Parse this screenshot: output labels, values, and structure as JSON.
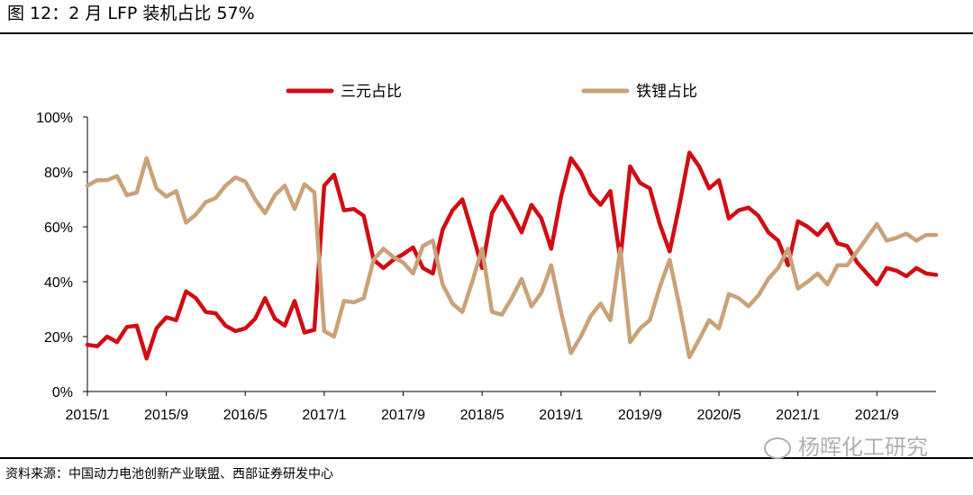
{
  "title": "图 12：2 月 LFP 装机占比 57%",
  "source": "资料来源：中国动力电池创新产业联盟、西部证券研发中心",
  "watermark": "杨晖化工研究",
  "colors": {
    "ncm": "#d00d14",
    "lfp": "#c9a27a",
    "axis": "#000000"
  },
  "chart_data": {
    "type": "line",
    "title": "",
    "xlabel": "",
    "ylabel": "",
    "ylim": [
      0,
      100
    ],
    "y_ticks": [
      "0%",
      "20%",
      "40%",
      "60%",
      "80%",
      "100%"
    ],
    "y_tick_values": [
      0,
      20,
      40,
      60,
      80,
      100
    ],
    "x_tick_labels": [
      "2015/1",
      "2015/9",
      "2016/5",
      "2017/1",
      "2017/9",
      "2018/5",
      "2019/1",
      "2019/9",
      "2020/5",
      "2021/1",
      "2021/9"
    ],
    "x_tick_index": [
      0,
      8,
      16,
      24,
      32,
      40,
      48,
      56,
      64,
      72,
      80
    ],
    "x_count": 87,
    "legend_position": "top",
    "series": [
      {
        "name": "三元占比",
        "values": [
          17,
          16.5,
          20,
          18,
          23.5,
          24,
          12,
          23,
          27,
          26,
          36.5,
          34,
          29,
          28.5,
          24,
          22,
          23,
          26.5,
          34,
          26.5,
          24,
          33,
          21.5,
          22.5,
          75,
          79,
          66,
          66.5,
          64,
          48,
          45,
          48,
          50,
          52.5,
          45,
          43,
          59,
          66,
          70,
          58,
          45,
          65,
          71,
          65,
          58,
          68,
          63,
          52,
          71,
          85,
          80,
          72,
          68,
          73,
          48,
          82,
          76,
          74,
          61,
          51,
          68,
          87,
          82,
          74,
          77,
          63,
          66,
          67,
          64,
          58,
          55,
          46,
          62,
          60,
          57,
          61,
          54,
          53,
          47,
          43,
          39,
          45,
          44,
          42,
          45,
          43,
          42.5
        ],
        "color": "#d00d14"
      },
      {
        "name": "铁锂占比",
        "values": [
          75,
          77,
          77,
          78.5,
          71.5,
          72.5,
          85,
          74,
          71,
          73,
          61.5,
          64.5,
          69,
          70.5,
          75,
          78,
          76.5,
          70,
          65,
          71.5,
          75,
          66.5,
          75.5,
          72.5,
          22,
          20,
          33,
          32.5,
          34,
          48,
          52,
          49,
          47,
          43,
          53,
          55,
          39,
          32,
          29,
          40,
          52,
          29,
          28,
          34,
          41,
          31,
          36,
          46,
          29,
          14,
          20,
          27.5,
          32,
          26,
          52,
          18,
          23,
          26,
          38,
          48,
          31,
          12.5,
          19,
          26,
          23,
          35.5,
          34,
          31,
          35,
          41,
          45,
          52,
          37.5,
          40,
          43,
          39,
          46,
          46,
          51,
          56,
          61,
          55,
          56,
          57.5,
          55,
          57,
          57
        ],
        "color": "#c9a27a"
      }
    ]
  }
}
